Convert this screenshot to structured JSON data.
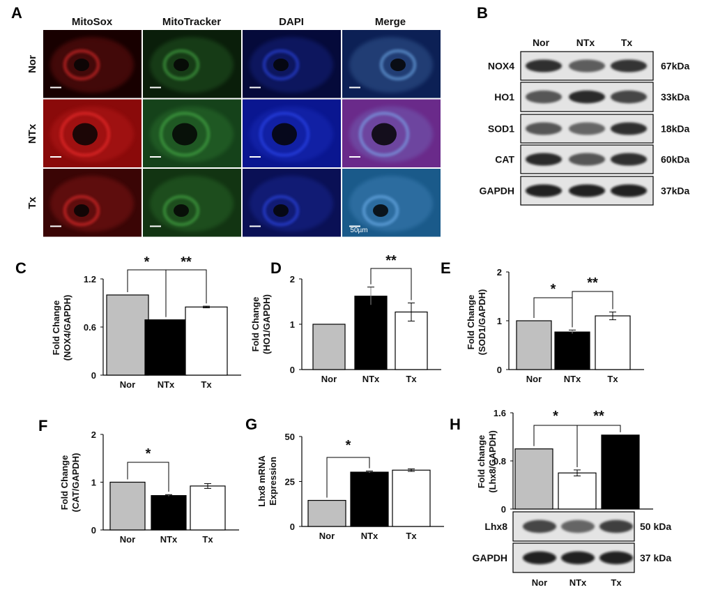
{
  "panel_a": {
    "label": "A",
    "columns": [
      "MitoSox",
      "MitoTracker",
      "DAPI",
      "Merge"
    ],
    "rows": [
      "Nor",
      "NTx",
      "Tx"
    ],
    "scale_bar": "50µm"
  },
  "panel_b": {
    "label": "B",
    "lanes": [
      "Nor",
      "NTx",
      "Tx"
    ],
    "blots": [
      {
        "name": "NOX4",
        "weight": "67kDa",
        "intensity": [
          0.85,
          0.55,
          0.8
        ]
      },
      {
        "name": "HO1",
        "weight": "33kDa",
        "intensity": [
          0.6,
          0.9,
          0.7
        ]
      },
      {
        "name": "SOD1",
        "weight": "18kDa",
        "intensity": [
          0.6,
          0.5,
          0.85
        ]
      },
      {
        "name": "CAT",
        "weight": "60kDa",
        "intensity": [
          0.9,
          0.6,
          0.85
        ]
      },
      {
        "name": "GAPDH",
        "weight": "37kDa",
        "intensity": [
          0.95,
          0.95,
          0.95
        ]
      }
    ]
  },
  "panel_h_blots": {
    "lanes": [
      "Nor",
      "NTx",
      "Tx"
    ],
    "blots": [
      {
        "name": "Lhx8",
        "weight": "50 kDa",
        "intensity": [
          0.7,
          0.5,
          0.75
        ]
      },
      {
        "name": "GAPDH",
        "weight": "37 kDa",
        "intensity": [
          0.95,
          0.95,
          0.95
        ]
      }
    ]
  },
  "colors": {
    "nor": "#c0c0c0",
    "dark": "#000000",
    "white": "#ffffff"
  },
  "chart_data": [
    {
      "id": "C",
      "type": "bar",
      "categories": [
        "Nor",
        "NTx",
        "Tx"
      ],
      "values": [
        1.0,
        0.69,
        0.85
      ],
      "errors": [
        0,
        0,
        0.01
      ],
      "fills": [
        "nor",
        "dark",
        "white"
      ],
      "ylim": [
        0,
        1.2
      ],
      "yticks": [
        "0",
        "0.6",
        "1.2"
      ],
      "ylabel": [
        "Fold Change",
        "(NOX4/GAPDH)"
      ],
      "sig": [
        "*",
        "**"
      ]
    },
    {
      "id": "D",
      "type": "bar",
      "categories": [
        "Nor",
        "NTx",
        "Tx"
      ],
      "values": [
        1.0,
        1.62,
        1.27
      ],
      "errors": [
        0,
        0.2,
        0.2
      ],
      "fills": [
        "nor",
        "dark",
        "white"
      ],
      "ylim": [
        0,
        2
      ],
      "yticks": [
        "0",
        "1",
        "2"
      ],
      "ylabel": [
        "Fold Change",
        "(HO1/GAPDH)"
      ],
      "sig": [
        "**"
      ]
    },
    {
      "id": "E",
      "type": "bar",
      "categories": [
        "Nor",
        "NTx",
        "Tx"
      ],
      "values": [
        1.0,
        0.77,
        1.1
      ],
      "errors": [
        0,
        0.04,
        0.08
      ],
      "fills": [
        "nor",
        "dark",
        "white"
      ],
      "ylim": [
        0,
        2
      ],
      "yticks": [
        "0",
        "1",
        "2"
      ],
      "ylabel": [
        "Fold Change",
        "(SOD1/GAPDH)"
      ],
      "sig": [
        "*",
        "**"
      ]
    },
    {
      "id": "F",
      "type": "bar",
      "categories": [
        "Nor",
        "NTx",
        "Tx"
      ],
      "values": [
        1.0,
        0.72,
        0.92
      ],
      "errors": [
        0,
        0.02,
        0.05
      ],
      "fills": [
        "nor",
        "dark",
        "white"
      ],
      "ylim": [
        0,
        2
      ],
      "yticks": [
        "0",
        "1",
        "2"
      ],
      "ylabel": [
        "Fold Change",
        "(CAT/GAPDH)"
      ],
      "sig": [
        "*"
      ]
    },
    {
      "id": "G",
      "type": "bar",
      "categories": [
        "Nor",
        "NTx",
        "Tx"
      ],
      "values": [
        14.5,
        30.2,
        31.3
      ],
      "errors": [
        0,
        0.6,
        0.7
      ],
      "fills": [
        "nor",
        "dark",
        "white"
      ],
      "ylim": [
        0,
        50
      ],
      "yticks": [
        "0",
        "25",
        "50"
      ],
      "ylabel": [
        "Lhx8 mRNA",
        "Expression"
      ],
      "sig": [
        "*"
      ]
    },
    {
      "id": "H",
      "type": "bar",
      "categories": [
        "Nor",
        "NTx",
        "Tx"
      ],
      "values": [
        1.0,
        0.6,
        1.23
      ],
      "errors": [
        0,
        0.05,
        0
      ],
      "fills": [
        "nor",
        "white",
        "dark"
      ],
      "ylim": [
        0,
        1.6
      ],
      "yticks": [
        "0",
        "0.8",
        "1.6"
      ],
      "ylabel": [
        "Fold change",
        "(Lhx8/GAPDH)"
      ],
      "sig": [
        "*",
        "**"
      ]
    }
  ]
}
